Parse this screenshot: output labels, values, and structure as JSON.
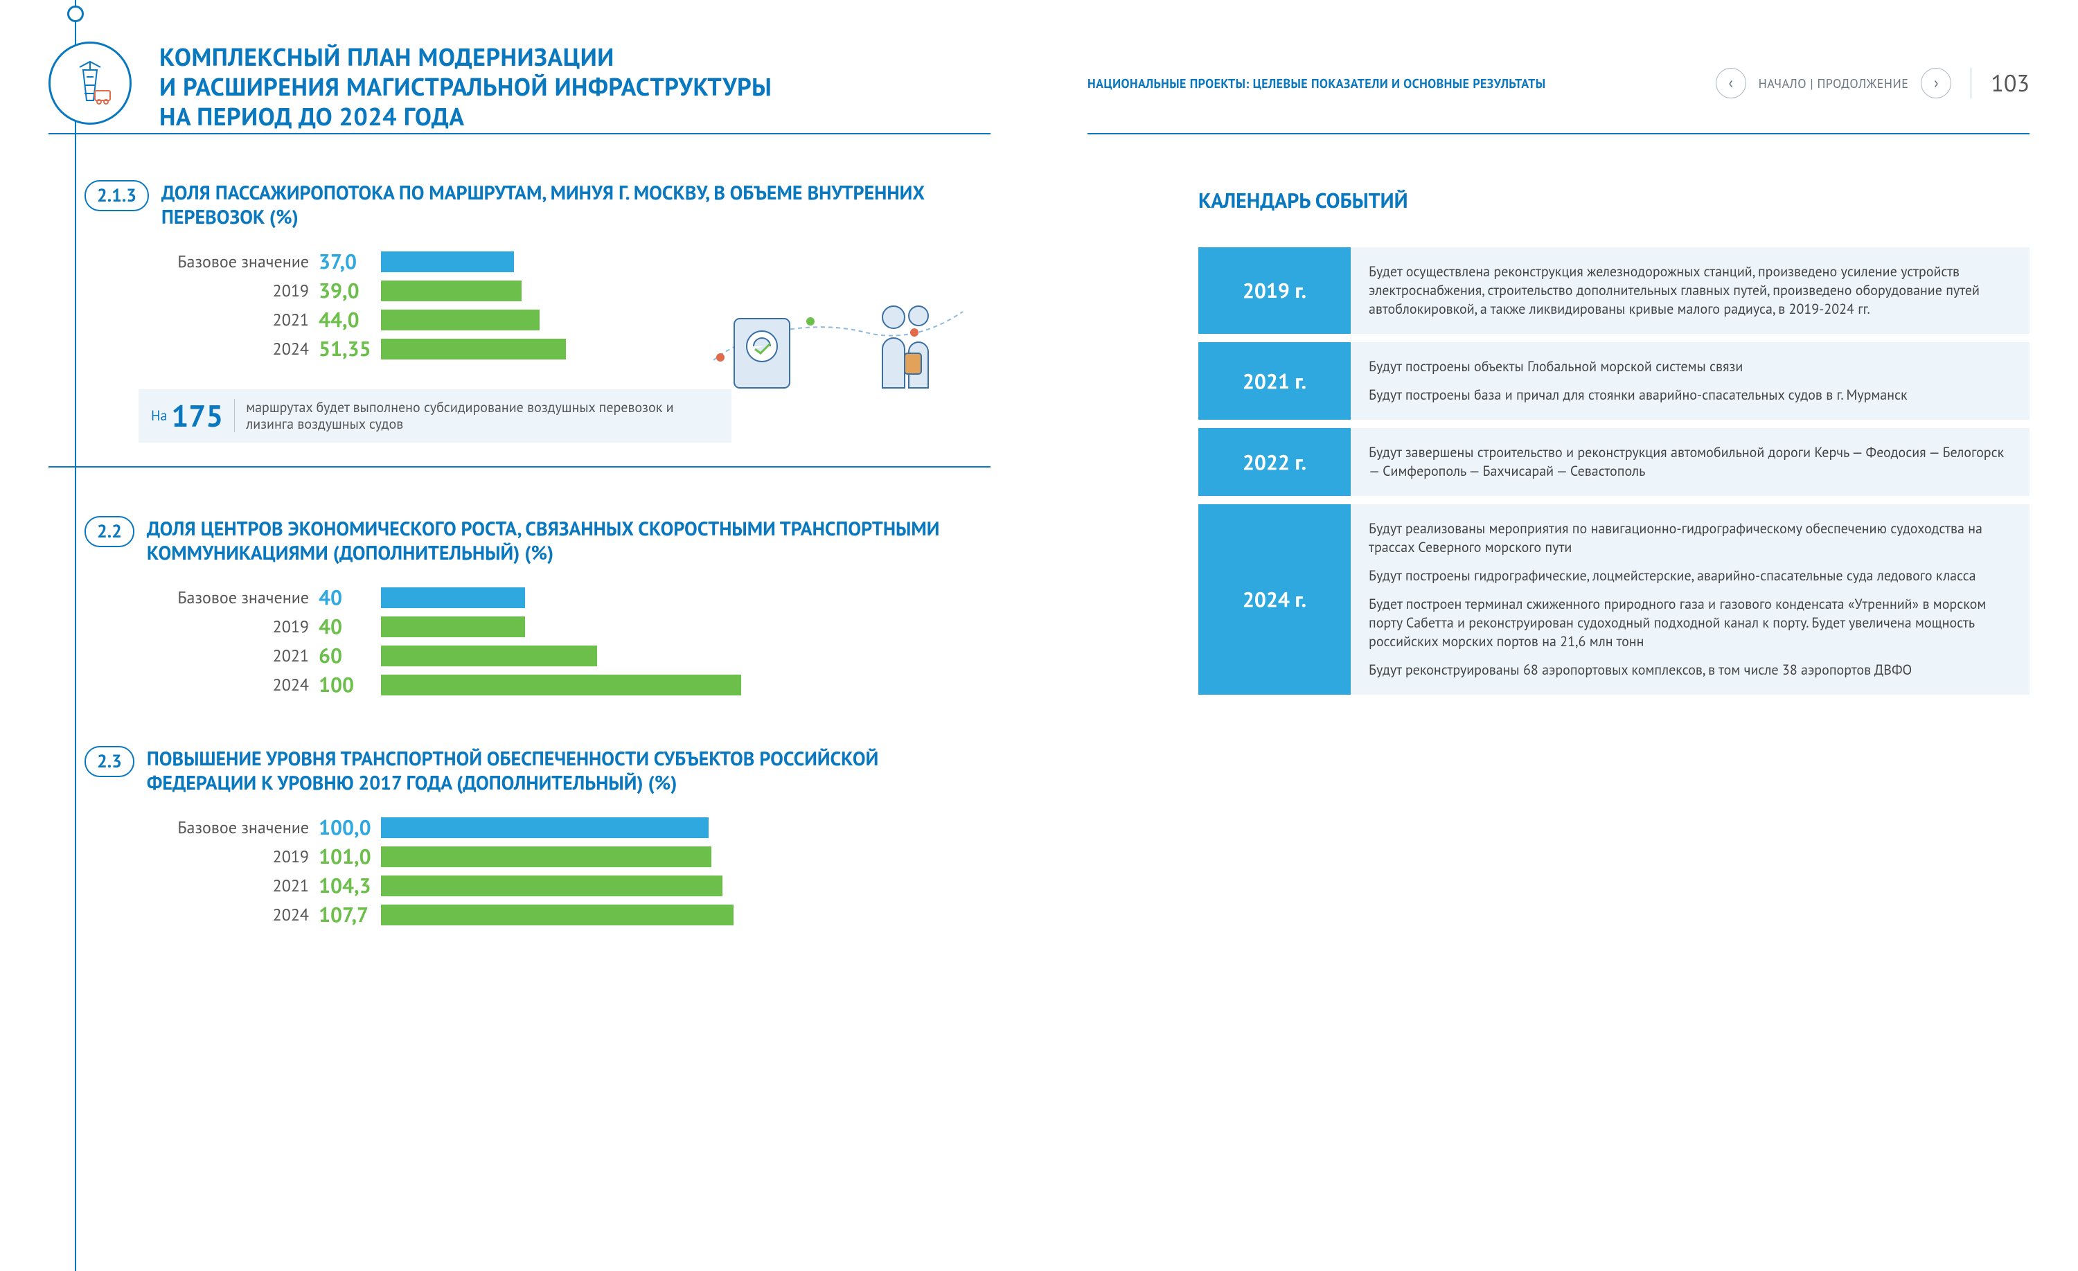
{
  "colors": {
    "primary": "#0a78bf",
    "bar_base": "#2ea8de",
    "bar_series": "#6cbf4b",
    "tile_bg": "#eef5fa",
    "text_muted": "#555555"
  },
  "left": {
    "title_lines": [
      "КОМПЛЕКСНЫЙ ПЛАН МОДЕРНИЗАЦИИ",
      "И РАСШИРЕНИЯ МАГИСТРАЛЬНОЙ ИНФРАСТРУКТУРЫ",
      "НА ПЕРИОД ДО 2024 ГОДА"
    ],
    "sections": [
      {
        "num": "2.1.3",
        "title": "ДОЛЯ ПАССАЖИРОПОТОКА ПО МАРШРУТАМ, МИНУЯ Г. МОСКВУ, В ОБЪЕМЕ ВНУТРЕННИХ ПЕРЕВОЗОК (%)",
        "chart": {
          "max": 100,
          "rows": [
            {
              "label": "Базовое значение",
              "value": "37,0",
              "num": 37.0,
              "color": "#2ea8de"
            },
            {
              "label": "2019",
              "value": "39,0",
              "num": 39.0,
              "color": "#6cbf4b"
            },
            {
              "label": "2021",
              "value": "44,0",
              "num": 44.0,
              "color": "#6cbf4b"
            },
            {
              "label": "2024",
              "value": "51,35",
              "num": 51.35,
              "color": "#6cbf4b"
            }
          ]
        },
        "footnote": {
          "prefix": "На",
          "big": "175",
          "text": "маршрутах будет выполнено субсидирование воздушных перевозок и лизинга воздушных судов"
        },
        "has_illustration": true
      },
      {
        "num": "2.2",
        "title": "ДОЛЯ ЦЕНТРОВ ЭКОНОМИЧЕСКОГО РОСТА, СВЯЗАННЫХ СКОРОСТНЫМИ ТРАНСПОРТНЫМИ КОММУНИКАЦИЯМИ (ДОПОЛНИТЕЛЬНЫЙ) (%)",
        "chart": {
          "max": 100,
          "rows": [
            {
              "label": "Базовое значение",
              "value": "40",
              "num": 40,
              "color": "#2ea8de"
            },
            {
              "label": "2019",
              "value": "40",
              "num": 40,
              "color": "#6cbf4b"
            },
            {
              "label": "2021",
              "value": "60",
              "num": 60,
              "color": "#6cbf4b"
            },
            {
              "label": "2024",
              "value": "100",
              "num": 100,
              "color": "#6cbf4b"
            }
          ]
        }
      },
      {
        "num": "2.3",
        "title": "ПОВЫШЕНИЕ УРОВНЯ ТРАНСПОРТНОЙ ОБЕСПЕЧЕННОСТИ СУБЪЕКТОВ РОССИЙСКОЙ ФЕДЕРАЦИИ К УРОВНЮ 2017 ГОДА (ДОПОЛНИТЕЛЬНЫЙ) (%)",
        "chart": {
          "max": 110,
          "rows": [
            {
              "label": "Базовое значение",
              "value": "100,0",
              "num": 100.0,
              "color": "#2ea8de"
            },
            {
              "label": "2019",
              "value": "101,0",
              "num": 101.0,
              "color": "#6cbf4b"
            },
            {
              "label": "2021",
              "value": "104,3",
              "num": 104.3,
              "color": "#6cbf4b"
            },
            {
              "label": "2024",
              "value": "107,7",
              "num": 107.7,
              "color": "#6cbf4b"
            }
          ]
        }
      }
    ]
  },
  "right": {
    "header_sub": "НАЦИОНАЛЬНЫЕ ПРОЕКТЫ: ЦЕЛЕВЫЕ ПОКАЗАТЕЛИ И ОСНОВНЫЕ РЕЗУЛЬТАТЫ",
    "nav_label": "НАЧАЛО | ПРОДОЛЖЕНИЕ",
    "page_no": "103",
    "calendar_title": "КАЛЕНДАРЬ СОБЫТИЙ",
    "events": [
      {
        "year": "2019 г.",
        "paras": [
          "Будет осуществлена реконструкция железнодорожных станций, произведено усиление устройств электроснабжения, строительство дополнительных главных путей, произведено оборудование путей автоблокировкой, а также ликвидированы кривые малого радиуса, в 2019-2024 гг."
        ]
      },
      {
        "year": "2021 г.",
        "paras": [
          "Будут построены объекты Глобальной морской системы связи",
          "Будут построены база и причал для стоянки аварийно-спасательных судов в г. Мурманск"
        ]
      },
      {
        "year": "2022 г.",
        "paras": [
          "Будут завершены строительство и реконструкция автомобильной дороги Керчь — Феодосия — Белогорск — Симферополь — Бахчисарай — Севастополь"
        ]
      },
      {
        "year": "2024 г.",
        "paras": [
          "Будут реализованы мероприятия по навигационно-гидрографическому обеспечению судоходства на трассах Северного морского пути",
          "Будут построены гидрографические, лоцмейстерские, аварийно-спасательные суда ледового класса",
          "Будет построен терминал сжиженного природного газа и газового конденсата «Утренний» в морском порту Сабетта и реконструирован судоходный подходной канал к порту. Будет увеличена мощность российских морских портов на 21,6 млн тонн",
          "Будут реконструированы 68 аэропортовых комплексов, в том числе 38 аэропортов ДВФО"
        ]
      }
    ]
  }
}
